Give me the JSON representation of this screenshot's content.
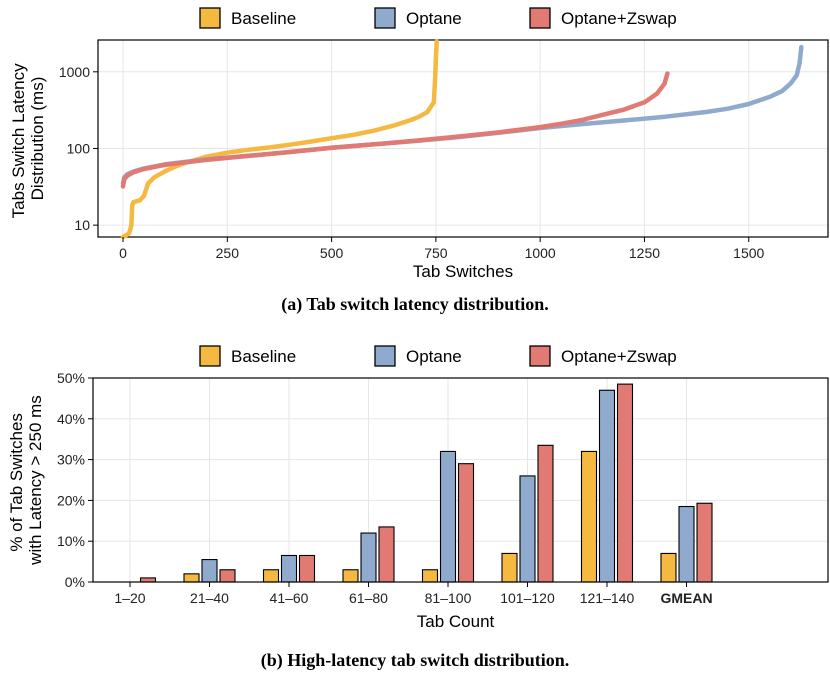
{
  "colors": {
    "baseline": "#f5b942",
    "optane": "#8faacd",
    "zswap": "#e07a73"
  },
  "captions": {
    "a": "(a) Tab switch latency distribution.",
    "b": "(b) High-latency tab switch distribution."
  },
  "chart_data": [
    {
      "type": "line",
      "ylabel_lines": [
        "Tabs Switch Latency",
        "Distribution (ms)"
      ],
      "xlabel": "Tab Switches",
      "yscale": "log",
      "xlim": [
        -60,
        1690
      ],
      "ylim": [
        7,
        2600
      ],
      "xticks": [
        0,
        250,
        500,
        750,
        1000,
        1250,
        1500
      ],
      "xtick_labels": [
        "0",
        "250",
        "500",
        "750",
        "1000",
        "1250",
        "1500"
      ],
      "yticks": [
        10,
        100,
        1000
      ],
      "ytick_labels": [
        "10",
        "100",
        "1000"
      ],
      "grid": true,
      "legend_position": "top",
      "series": [
        {
          "name": "Baseline",
          "color_key": "baseline",
          "points": [
            [
              0,
              7
            ],
            [
              10,
              7.5
            ],
            [
              15,
              8
            ],
            [
              20,
              10
            ],
            [
              22,
              18
            ],
            [
              25,
              20
            ],
            [
              40,
              21
            ],
            [
              50,
              24
            ],
            [
              60,
              35
            ],
            [
              75,
              42
            ],
            [
              100,
              50
            ],
            [
              125,
              58
            ],
            [
              150,
              65
            ],
            [
              200,
              78
            ],
            [
              250,
              88
            ],
            [
              300,
              96
            ],
            [
              350,
              103
            ],
            [
              400,
              112
            ],
            [
              450,
              123
            ],
            [
              500,
              136
            ],
            [
              550,
              150
            ],
            [
              600,
              170
            ],
            [
              650,
              200
            ],
            [
              690,
              235
            ],
            [
              710,
              260
            ],
            [
              730,
              300
            ],
            [
              745,
              400
            ],
            [
              748,
              800
            ],
            [
              750,
              1500
            ],
            [
              752,
              2500
            ]
          ]
        },
        {
          "name": "Optane",
          "color_key": "optane",
          "points": [
            [
              0,
              35
            ],
            [
              3,
              42
            ],
            [
              10,
              46
            ],
            [
              25,
              50
            ],
            [
              50,
              55
            ],
            [
              100,
              62
            ],
            [
              150,
              67
            ],
            [
              200,
              72
            ],
            [
              300,
              80
            ],
            [
              400,
              90
            ],
            [
              500,
              102
            ],
            [
              600,
              113
            ],
            [
              700,
              125
            ],
            [
              800,
              140
            ],
            [
              900,
              160
            ],
            [
              1000,
              185
            ],
            [
              1100,
              208
            ],
            [
              1200,
              232
            ],
            [
              1300,
              260
            ],
            [
              1400,
              300
            ],
            [
              1450,
              330
            ],
            [
              1500,
              380
            ],
            [
              1550,
              470
            ],
            [
              1580,
              560
            ],
            [
              1600,
              700
            ],
            [
              1615,
              900
            ],
            [
              1622,
              1300
            ],
            [
              1626,
              2100
            ]
          ]
        },
        {
          "name": "Optane+Zswap",
          "color_key": "zswap",
          "points": [
            [
              0,
              32
            ],
            [
              3,
              40
            ],
            [
              10,
              44
            ],
            [
              25,
              49
            ],
            [
              50,
              54
            ],
            [
              100,
              61
            ],
            [
              150,
              66
            ],
            [
              200,
              71
            ],
            [
              300,
              80
            ],
            [
              400,
              90
            ],
            [
              500,
              102
            ],
            [
              600,
              113
            ],
            [
              700,
              126
            ],
            [
              800,
              142
            ],
            [
              900,
              162
            ],
            [
              1000,
              190
            ],
            [
              1050,
              210
            ],
            [
              1100,
              235
            ],
            [
              1150,
              275
            ],
            [
              1200,
              320
            ],
            [
              1250,
              400
            ],
            [
              1280,
              520
            ],
            [
              1298,
              700
            ],
            [
              1305,
              950
            ]
          ]
        }
      ]
    },
    {
      "type": "bar",
      "ylabel_lines": [
        "% of Tab Switches",
        "with Latency > 250 ms"
      ],
      "xlabel": "Tab Count",
      "ylim": [
        0,
        50
      ],
      "yticks": [
        0,
        10,
        20,
        30,
        40,
        50
      ],
      "ytick_labels": [
        "0%",
        "10%",
        "20%",
        "30%",
        "40%",
        "50%"
      ],
      "grid": true,
      "legend_position": "top",
      "categories": [
        "1–20",
        "21–40",
        "41–60",
        "61–80",
        "81–100",
        "101–120",
        "121–140",
        "GMEAN"
      ],
      "series": [
        {
          "name": "Baseline",
          "color_key": "baseline",
          "values": [
            0,
            2,
            3,
            3,
            3,
            7,
            32,
            7
          ]
        },
        {
          "name": "Optane",
          "color_key": "optane",
          "values": [
            0,
            5.5,
            6.5,
            12,
            32,
            26,
            47,
            18.5
          ]
        },
        {
          "name": "Optane+Zswap",
          "color_key": "zswap",
          "values": [
            1,
            3,
            6.5,
            13.5,
            29,
            33.5,
            48.5,
            19.3
          ]
        }
      ]
    }
  ]
}
